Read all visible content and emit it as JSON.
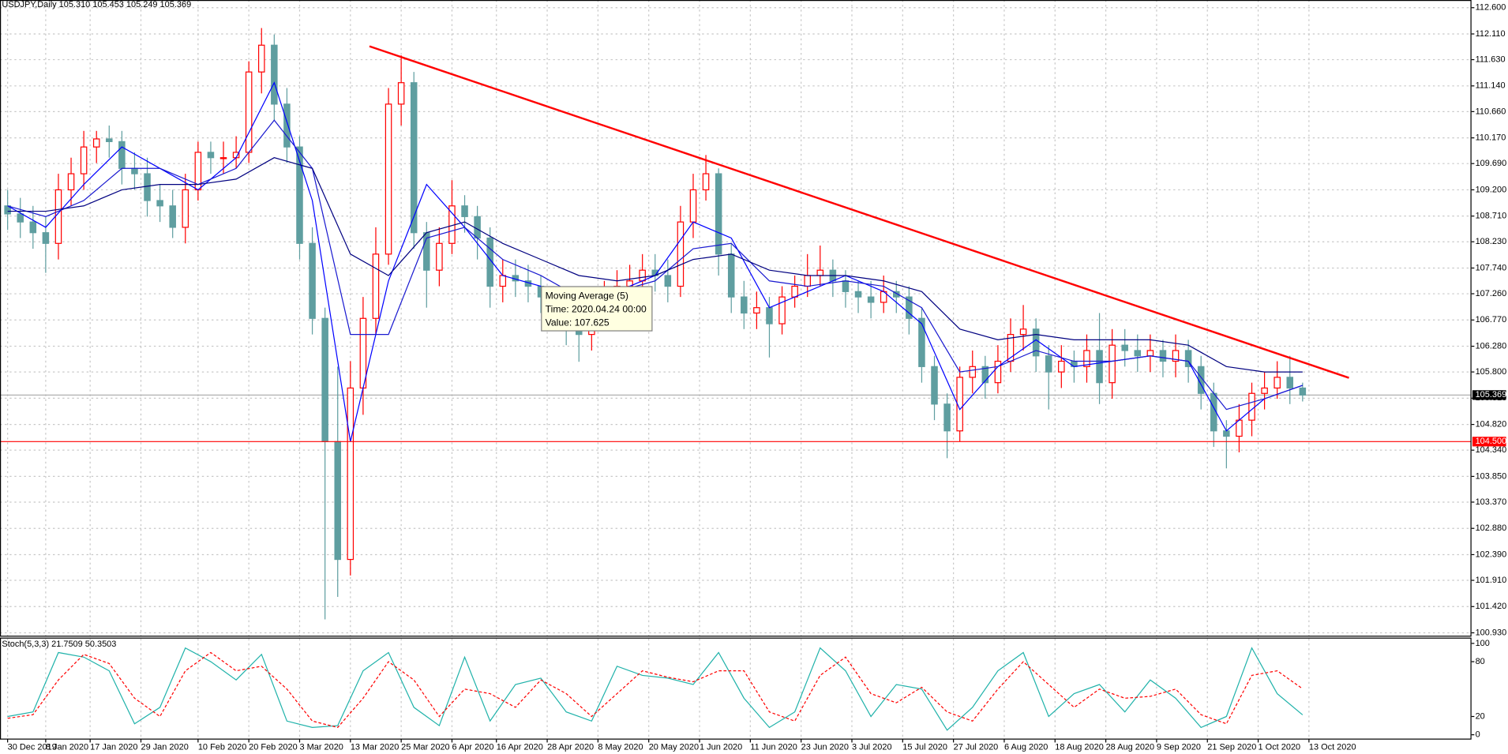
{
  "chart_data": {
    "type": "candlestick",
    "title": "USDJPY,Daily  105.310 105.453 105.249 105.369",
    "up_color": "#ff0000",
    "down_color": "#5f9ea0",
    "grid": true,
    "xlim": [
      -1.2,
      230.6
    ],
    "ylim": [
      100.93,
      112.6
    ],
    "yticks": [
      {
        "value": 112.6,
        "label": "112.600"
      },
      {
        "value": 112.11,
        "label": "112.110"
      },
      {
        "value": 111.63,
        "label": "111.630"
      },
      {
        "value": 111.14,
        "label": "111.140"
      },
      {
        "value": 110.66,
        "label": "110.660"
      },
      {
        "value": 110.17,
        "label": "110.170"
      },
      {
        "value": 109.69,
        "label": "109.690"
      },
      {
        "value": 109.2,
        "label": "109.200"
      },
      {
        "value": 108.71,
        "label": "108.710"
      },
      {
        "value": 108.23,
        "label": "108.230"
      },
      {
        "value": 107.74,
        "label": "107.740"
      },
      {
        "value": 107.26,
        "label": "107.260"
      },
      {
        "value": 106.77,
        "label": "106.770"
      },
      {
        "value": 106.28,
        "label": "106.280"
      },
      {
        "value": 105.8,
        "label": "105.800"
      },
      {
        "value": 105.31,
        "label": "105.310"
      },
      {
        "value": 104.82,
        "label": "104.820"
      },
      {
        "value": 104.34,
        "label": "104.340"
      },
      {
        "value": 103.85,
        "label": "103.850"
      },
      {
        "value": 103.37,
        "label": "103.370"
      },
      {
        "value": 102.88,
        "label": "102.880"
      },
      {
        "value": 102.39,
        "label": "102.390"
      },
      {
        "value": 101.91,
        "label": "101.910"
      },
      {
        "value": 101.42,
        "label": "101.420"
      },
      {
        "value": 100.93,
        "label": "100.930"
      }
    ],
    "xticks": [
      {
        "value": 0,
        "label": "30 Dec 2019"
      },
      {
        "value": 6,
        "label": "8 Jan 2020"
      },
      {
        "value": 13,
        "label": "17 Jan 2020"
      },
      {
        "value": 21,
        "label": "29 Jan 2020"
      },
      {
        "value": 30,
        "label": "10 Feb 2020"
      },
      {
        "value": 38,
        "label": "20 Feb 2020"
      },
      {
        "value": 46,
        "label": "3 Mar 2020"
      },
      {
        "value": 54,
        "label": "13 Mar 2020"
      },
      {
        "value": 62,
        "label": "25 Mar 2020"
      },
      {
        "value": 70,
        "label": "6 Apr 2020"
      },
      {
        "value": 77,
        "label": "16 Apr 2020"
      },
      {
        "value": 85,
        "label": "28 Apr 2020"
      },
      {
        "value": 93,
        "label": "8 May 2020"
      },
      {
        "value": 101,
        "label": "20 May 2020"
      },
      {
        "value": 109,
        "label": "1 Jun 2020"
      },
      {
        "value": 117,
        "label": "11 Jun 2020"
      },
      {
        "value": 125,
        "label": "23 Jun 2020"
      },
      {
        "value": 133,
        "label": "3 Jul 2020"
      },
      {
        "value": 141,
        "label": "15 Jul 2020"
      },
      {
        "value": 149,
        "label": "27 Jul 2020"
      },
      {
        "value": 157,
        "label": "6 Aug 2020"
      },
      {
        "value": 165,
        "label": "18 Aug 2020"
      },
      {
        "value": 173,
        "label": "28 Aug 2020"
      },
      {
        "value": 181,
        "label": "9 Sep 2020"
      },
      {
        "value": 189,
        "label": "21 Sep 2020"
      },
      {
        "value": 197,
        "label": "1 Oct 2020"
      },
      {
        "value": 205,
        "label": "13 Oct 2020"
      }
    ],
    "x": [
      0,
      2,
      4,
      6,
      8,
      10,
      12,
      14,
      16,
      18,
      20,
      22,
      24,
      26,
      28,
      30,
      32,
      34,
      36,
      38,
      40,
      42,
      44,
      46,
      48,
      50,
      52,
      54,
      56,
      58,
      60,
      62,
      64,
      66,
      68,
      70,
      72,
      74,
      76,
      78,
      80,
      82,
      84,
      86,
      88,
      90,
      92,
      94,
      96,
      98,
      100,
      102,
      104,
      106,
      108,
      110,
      112,
      114,
      116,
      118,
      120,
      122,
      124,
      126,
      128,
      130,
      132,
      134,
      136,
      138,
      140,
      142,
      144,
      146,
      148,
      150,
      152,
      154,
      156,
      158,
      160,
      162,
      164,
      166,
      168,
      170,
      172,
      174,
      176,
      178,
      180,
      182,
      184,
      186,
      188,
      190,
      192,
      194,
      196,
      198,
      200,
      202,
      204
    ],
    "open": [
      108.9,
      108.75,
      108.6,
      108.4,
      108.2,
      109.2,
      109.5,
      110.0,
      110.15,
      110.1,
      109.6,
      109.5,
      109.0,
      108.9,
      108.5,
      109.2,
      109.9,
      109.8,
      109.8,
      109.9,
      111.4,
      111.9,
      110.8,
      110.0,
      108.2,
      106.8,
      104.5,
      102.3,
      105.5,
      106.8,
      108.0,
      110.8,
      111.2,
      108.4,
      107.7,
      108.2,
      108.9,
      108.7,
      108.3,
      107.4,
      107.6,
      107.5,
      107.4,
      107.2,
      106.9,
      106.8,
      106.5,
      106.8,
      107.3,
      107.4,
      107.5,
      107.7,
      107.6,
      107.4,
      108.6,
      109.2,
      109.5,
      108.0,
      107.2,
      106.9,
      107.0,
      106.7,
      107.2,
      107.4,
      107.6,
      107.7,
      107.5,
      107.3,
      107.2,
      107.1,
      107.3,
      107.2,
      106.8,
      105.9,
      105.2,
      104.7,
      105.7,
      105.9,
      105.6,
      106.0,
      106.5,
      106.6,
      106.1,
      105.8,
      106.0,
      105.9,
      106.2,
      105.6,
      106.3,
      106.2,
      106.1,
      106.2,
      106.0,
      106.2,
      105.9,
      105.4,
      104.7,
      104.6,
      104.9,
      105.4,
      105.5,
      105.7,
      105.5
    ],
    "high": [
      109.2,
      109.05,
      108.9,
      108.7,
      109.5,
      109.8,
      110.3,
      110.3,
      110.4,
      110.3,
      109.9,
      109.8,
      109.3,
      109.2,
      109.5,
      110.1,
      110.1,
      110.1,
      110.2,
      111.6,
      112.22,
      112.1,
      111.1,
      110.2,
      108.5,
      107.0,
      105.9,
      106.0,
      107.2,
      108.5,
      111.1,
      111.71,
      111.4,
      108.6,
      108.5,
      109.38,
      109.1,
      108.9,
      108.5,
      107.9,
      107.9,
      107.8,
      107.6,
      107.4,
      107.1,
      106.9,
      107.0,
      107.5,
      107.7,
      107.8,
      108.0,
      108.0,
      107.9,
      108.9,
      109.5,
      109.85,
      109.6,
      108.2,
      107.5,
      107.3,
      107.2,
      107.4,
      107.6,
      108.0,
      108.16,
      107.9,
      107.7,
      107.5,
      107.5,
      107.6,
      107.5,
      107.4,
      107.0,
      106.1,
      105.4,
      105.9,
      106.2,
      106.1,
      106.3,
      106.8,
      107.05,
      106.8,
      106.3,
      106.3,
      106.2,
      106.5,
      106.9,
      106.6,
      106.6,
      106.5,
      106.5,
      106.4,
      106.5,
      106.4,
      106.1,
      105.6,
      104.9,
      105.2,
      105.6,
      105.8,
      106.0,
      106.1,
      105.6
    ],
    "low": [
      108.45,
      108.3,
      108.1,
      107.65,
      107.9,
      108.9,
      109.2,
      109.7,
      109.8,
      109.3,
      109.2,
      108.7,
      108.6,
      108.3,
      108.2,
      109.0,
      109.5,
      109.5,
      109.6,
      109.7,
      111.0,
      110.5,
      109.7,
      107.9,
      106.5,
      101.18,
      101.6,
      102.0,
      105.0,
      106.5,
      107.8,
      110.4,
      108.1,
      107.0,
      107.4,
      108.0,
      108.4,
      107.9,
      107.0,
      107.1,
      107.2,
      107.1,
      106.9,
      106.6,
      106.3,
      105.99,
      106.2,
      106.6,
      107.0,
      107.1,
      107.2,
      107.3,
      107.1,
      107.2,
      108.3,
      109.0,
      107.6,
      106.9,
      106.6,
      106.6,
      106.07,
      106.5,
      107.0,
      107.2,
      107.4,
      107.2,
      107.0,
      106.9,
      106.8,
      106.9,
      106.9,
      106.5,
      105.6,
      104.9,
      104.19,
      104.5,
      105.4,
      105.3,
      105.4,
      105.8,
      106.2,
      105.8,
      105.1,
      105.5,
      105.6,
      105.6,
      105.2,
      105.3,
      105.9,
      105.8,
      105.8,
      105.7,
      105.7,
      105.6,
      105.1,
      104.4,
      104.0,
      104.3,
      104.6,
      105.1,
      105.3,
      105.2,
      105.249
    ],
    "close": [
      108.75,
      108.6,
      108.4,
      108.2,
      109.2,
      109.5,
      110.0,
      110.15,
      110.1,
      109.6,
      109.5,
      109.0,
      108.9,
      108.5,
      109.2,
      109.9,
      109.8,
      109.8,
      109.9,
      111.4,
      111.9,
      110.8,
      110.0,
      108.2,
      106.8,
      104.5,
      102.3,
      105.5,
      106.8,
      108.0,
      110.8,
      111.2,
      108.4,
      107.7,
      108.2,
      108.9,
      108.7,
      108.3,
      107.4,
      107.6,
      107.5,
      107.4,
      107.2,
      106.9,
      106.8,
      106.5,
      106.8,
      107.3,
      107.4,
      107.5,
      107.7,
      107.6,
      107.4,
      108.6,
      109.2,
      109.5,
      108.0,
      107.2,
      106.9,
      107.0,
      106.7,
      107.2,
      107.4,
      107.6,
      107.7,
      107.5,
      107.3,
      107.2,
      107.1,
      107.3,
      107.2,
      106.8,
      105.9,
      105.2,
      104.7,
      105.7,
      105.9,
      105.6,
      106.0,
      106.5,
      106.6,
      106.1,
      105.8,
      106.0,
      105.9,
      106.2,
      105.6,
      106.3,
      106.2,
      106.1,
      106.2,
      106.0,
      106.2,
      105.9,
      105.4,
      104.7,
      104.6,
      104.9,
      105.4,
      105.5,
      105.7,
      105.5,
      105.369
    ],
    "moving_averages": {
      "x": [
        0,
        6,
        12,
        18,
        24,
        30,
        36,
        42,
        48,
        54,
        60,
        66,
        72,
        78,
        84,
        90,
        96,
        102,
        108,
        114,
        120,
        126,
        132,
        138,
        144,
        150,
        156,
        162,
        168,
        174,
        180,
        186,
        192,
        198,
        204
      ],
      "series": [
        {
          "color": "#0000ff",
          "values": [
            108.9,
            108.5,
            109.3,
            110.0,
            109.6,
            109.2,
            109.8,
            111.2,
            109.0,
            104.5,
            107.5,
            109.3,
            108.5,
            107.6,
            107.4,
            106.8,
            107.3,
            107.6,
            108.6,
            108.3,
            107.0,
            107.3,
            107.6,
            107.3,
            106.7,
            105.1,
            105.9,
            106.4,
            105.9,
            106.0,
            106.1,
            106.0,
            104.7,
            105.3,
            105.55
          ]
        },
        {
          "color": "#1a1ad0",
          "values": [
            108.9,
            108.7,
            109.0,
            109.6,
            109.6,
            109.3,
            109.6,
            110.5,
            109.6,
            106.5,
            106.5,
            108.3,
            108.5,
            107.9,
            107.6,
            107.2,
            107.3,
            107.5,
            108.1,
            108.2,
            107.5,
            107.4,
            107.5,
            107.4,
            107.0,
            105.8,
            105.9,
            106.2,
            106.0,
            106.0,
            106.1,
            106.0,
            105.1,
            105.3,
            105.55
          ]
        },
        {
          "color": "#000080",
          "values": [
            108.8,
            108.8,
            108.9,
            109.2,
            109.3,
            109.3,
            109.4,
            109.8,
            109.6,
            108.0,
            107.6,
            108.4,
            108.6,
            108.2,
            107.9,
            107.6,
            107.5,
            107.6,
            107.9,
            108.0,
            107.7,
            107.6,
            107.6,
            107.5,
            107.3,
            106.6,
            106.4,
            106.5,
            106.4,
            106.4,
            106.4,
            106.3,
            105.9,
            105.8,
            105.8
          ]
        }
      ]
    },
    "trendline": {
      "x": [
        57,
        211.3
      ],
      "y": [
        111.88,
        105.69
      ],
      "color": "#ff0000"
    },
    "hline": {
      "value": 104.5,
      "label": "104.500",
      "color": "#ff0000"
    },
    "bid": {
      "value": 105.369,
      "label": "105.369"
    },
    "tooltip": [
      "Moving Average (5)",
      "Time: 2020.04.24 00:00",
      "Value: 107.625"
    ],
    "stochastic": {
      "title": "Stoch(5,3,3) 21.7509 50.3503",
      "ylim": [
        0,
        100
      ],
      "yticks": [
        100,
        80,
        20,
        0
      ],
      "x": [
        0,
        4,
        8,
        12,
        16,
        20,
        24,
        28,
        32,
        36,
        40,
        44,
        48,
        52,
        56,
        60,
        64,
        68,
        72,
        76,
        80,
        84,
        88,
        92,
        96,
        100,
        104,
        108,
        112,
        116,
        120,
        124,
        128,
        132,
        136,
        140,
        144,
        148,
        152,
        156,
        160,
        164,
        168,
        172,
        176,
        180,
        184,
        188,
        192,
        196,
        200,
        204
      ],
      "series": [
        {
          "color": "#20b2aa",
          "style": "solid",
          "values": [
            20,
            25,
            90,
            85,
            70,
            12,
            30,
            95,
            80,
            60,
            88,
            15,
            8,
            10,
            70,
            90,
            30,
            10,
            85,
            15,
            55,
            62,
            25,
            15,
            75,
            65,
            62,
            55,
            90,
            40,
            8,
            25,
            95,
            70,
            20,
            55,
            50,
            5,
            30,
            70,
            90,
            20,
            45,
            55,
            25,
            60,
            40,
            8,
            20,
            95,
            45,
            21.7509
          ]
        },
        {
          "color": "#ff0000",
          "style": "dashed",
          "values": [
            18,
            22,
            60,
            88,
            78,
            40,
            20,
            70,
            90,
            70,
            75,
            50,
            15,
            8,
            40,
            80,
            60,
            20,
            50,
            45,
            30,
            60,
            45,
            20,
            45,
            70,
            63,
            58,
            70,
            70,
            25,
            15,
            65,
            85,
            45,
            35,
            52,
            25,
            15,
            50,
            80,
            55,
            30,
            50,
            40,
            42,
            50,
            22,
            12,
            65,
            70,
            50.3503
          ]
        }
      ]
    }
  }
}
